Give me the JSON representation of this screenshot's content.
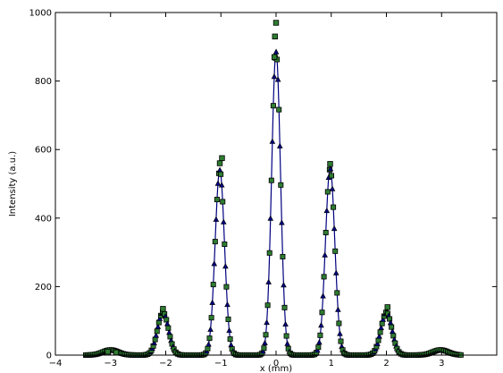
{
  "chart_data": {
    "type": "scatter",
    "title": "",
    "xlabel": "x (mm)",
    "ylabel": "Intensity (a.u.)",
    "xlim": [
      -4,
      4
    ],
    "ylim": [
      0,
      1000
    ],
    "x_ticks": [
      -4,
      -3,
      -2,
      -1,
      0,
      1,
      2,
      3
    ],
    "y_ticks": [
      0,
      200,
      400,
      600,
      800,
      1000
    ],
    "x_tick_labels": [
      "−4",
      "−3",
      "−2",
      "−1",
      "0",
      "1",
      "2",
      "3"
    ],
    "y_tick_labels": [
      "0",
      "200",
      "400",
      "600",
      "800",
      "1000"
    ],
    "grid": false,
    "legend": "none",
    "peaks": [
      {
        "x": -3.0,
        "height": 15,
        "width": 0.14
      },
      {
        "x": -2.05,
        "height": 125,
        "width": 0.1
      },
      {
        "x": -1.02,
        "height": 540,
        "width": 0.085
      },
      {
        "x": 0.0,
        "height": 885,
        "width": 0.08
      },
      {
        "x": 0.98,
        "height": 545,
        "width": 0.085
      },
      {
        "x": 2.0,
        "height": 125,
        "width": 0.1
      },
      {
        "x": 2.98,
        "height": 15,
        "width": 0.14
      }
    ],
    "series": [
      {
        "marker": "square",
        "color": "#2e7d32",
        "points": [
          {
            "x": -2.05,
            "y": 135
          },
          {
            "x": -1.02,
            "y": 560
          },
          {
            "x": -0.98,
            "y": 575
          },
          {
            "x": -0.03,
            "y": 870
          },
          {
            "x": -0.02,
            "y": 930
          },
          {
            "x": 0.0,
            "y": 970
          },
          {
            "x": 0.98,
            "y": 558
          },
          {
            "x": 2.02,
            "y": 140
          },
          {
            "x": -3.05,
            "y": 10
          },
          {
            "x": -2.9,
            "y": 8
          }
        ]
      },
      {
        "marker": "triangle",
        "color": "#000080",
        "points": []
      }
    ]
  }
}
